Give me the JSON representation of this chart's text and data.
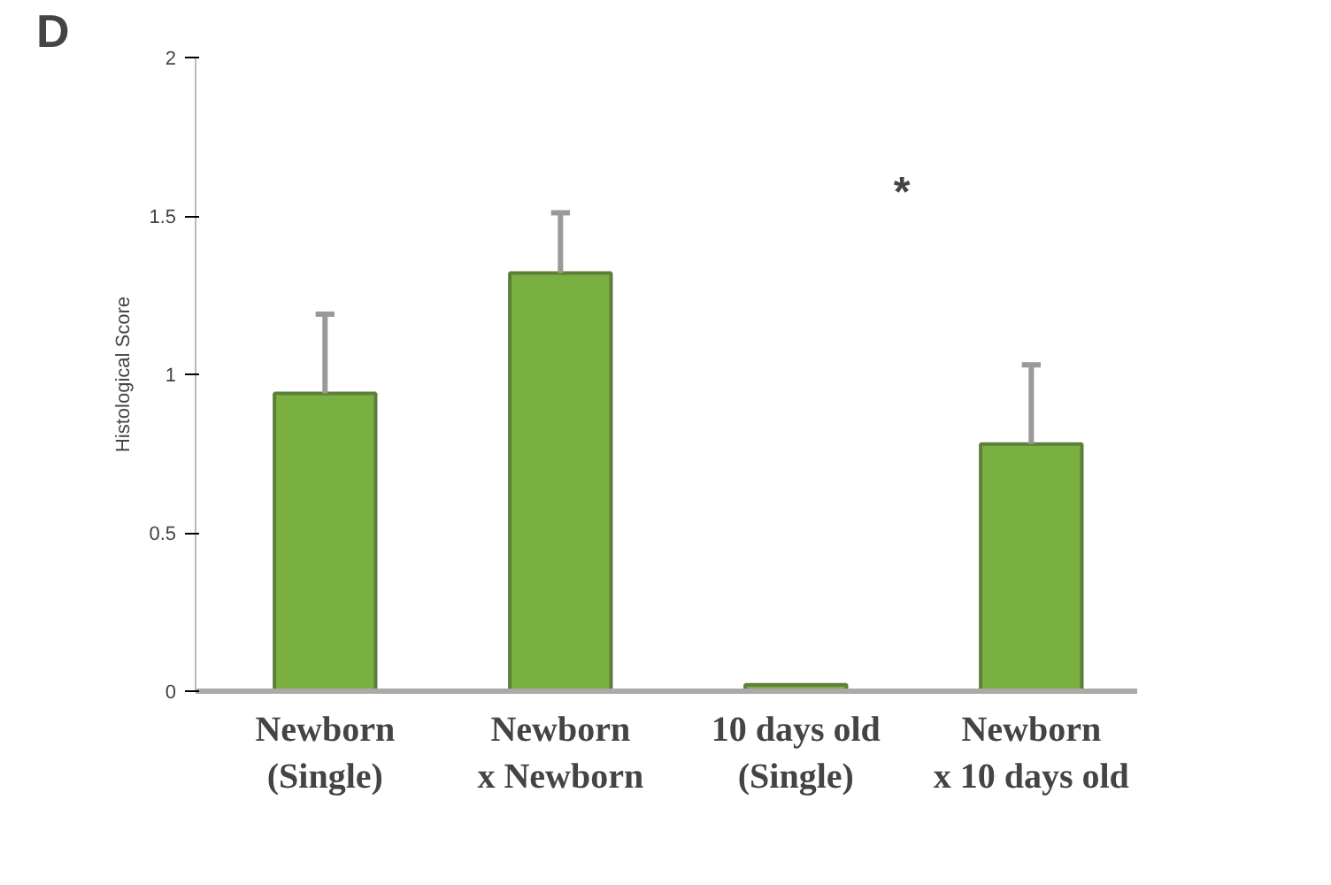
{
  "chart_data": {
    "type": "bar",
    "categories": [
      "Newborn\n(Single)",
      "Newborn\nx Newborn",
      "10 days old\n(Single)",
      "Newborn\nx 10 days old"
    ],
    "values": [
      0.94,
      1.32,
      0.02,
      0.78
    ],
    "errors": [
      [
        0.94,
        1.19
      ],
      [
        1.32,
        1.51
      ],
      null,
      [
        0.78,
        1.03
      ]
    ],
    "color": "#7ab041",
    "ylabel": "Histological Score",
    "ylim": [
      0,
      2
    ],
    "yticks": [
      0,
      0.5,
      1,
      1.5,
      2
    ],
    "grid": false,
    "annotations": [
      "D",
      "*"
    ]
  }
}
